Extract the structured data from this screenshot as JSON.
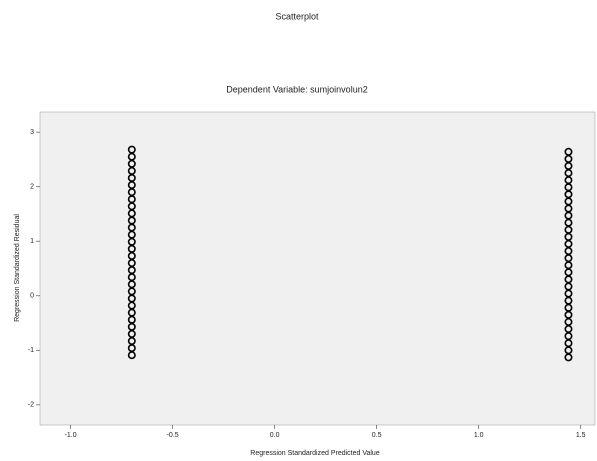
{
  "chart_data": {
    "type": "scatter",
    "title": "Scatterplot",
    "subtitle": "Dependent Variable: sumjoinvolun2",
    "x_label": "Regression Standardized Predicted Value",
    "y_label": "Regression Standardized Residual",
    "color": "#000000",
    "grid": false,
    "xlim": [
      -1.15,
      1.57
    ],
    "ylim": [
      -2.37,
      3.37
    ],
    "xticks": [
      {
        "value": -1.0,
        "label": "-1.0"
      },
      -0.5,
      {
        "value": 0.0,
        "label": "0.0"
      },
      0.5,
      {
        "value": 1.0,
        "label": "1.0"
      },
      1.5
    ],
    "yticks": [
      -2,
      -1,
      0,
      1,
      2,
      3
    ],
    "x": [
      -0.7,
      -0.7,
      -0.7,
      -0.7,
      -0.7,
      -0.7,
      -0.7,
      -0.7,
      -0.7,
      -0.7,
      -0.7,
      -0.7,
      -0.7,
      -0.7,
      -0.7,
      -0.7,
      -0.7,
      -0.7,
      -0.7,
      -0.7,
      -0.7,
      -0.7,
      -0.7,
      -0.7,
      -0.7,
      -0.7,
      -0.7,
      -0.7,
      -0.7,
      -0.7,
      1.44,
      1.44,
      1.44,
      1.44,
      1.44,
      1.44,
      1.44,
      1.44,
      1.44,
      1.44,
      1.44,
      1.44,
      1.44,
      1.44,
      1.44,
      1.44,
      1.44,
      1.44,
      1.44,
      1.44,
      1.44,
      1.44,
      1.44,
      1.44,
      1.44,
      1.44,
      1.44,
      1.44,
      1.44,
      1.44
    ],
    "values": [
      2.68,
      2.55,
      2.42,
      2.29,
      2.16,
      2.03,
      1.9,
      1.77,
      1.64,
      1.51,
      1.38,
      1.25,
      1.12,
      0.99,
      0.86,
      0.73,
      0.6,
      0.47,
      0.34,
      0.21,
      0.08,
      -0.05,
      -0.18,
      -0.31,
      -0.44,
      -0.57,
      -0.7,
      -0.83,
      -0.96,
      -1.09,
      2.64,
      2.51,
      2.38,
      2.25,
      2.12,
      1.99,
      1.86,
      1.73,
      1.6,
      1.47,
      1.34,
      1.21,
      1.08,
      0.95,
      0.82,
      0.69,
      0.56,
      0.43,
      0.3,
      0.17,
      0.04,
      -0.09,
      -0.22,
      -0.35,
      -0.48,
      -0.61,
      -0.74,
      -0.87,
      -1.0,
      -1.13
    ]
  }
}
